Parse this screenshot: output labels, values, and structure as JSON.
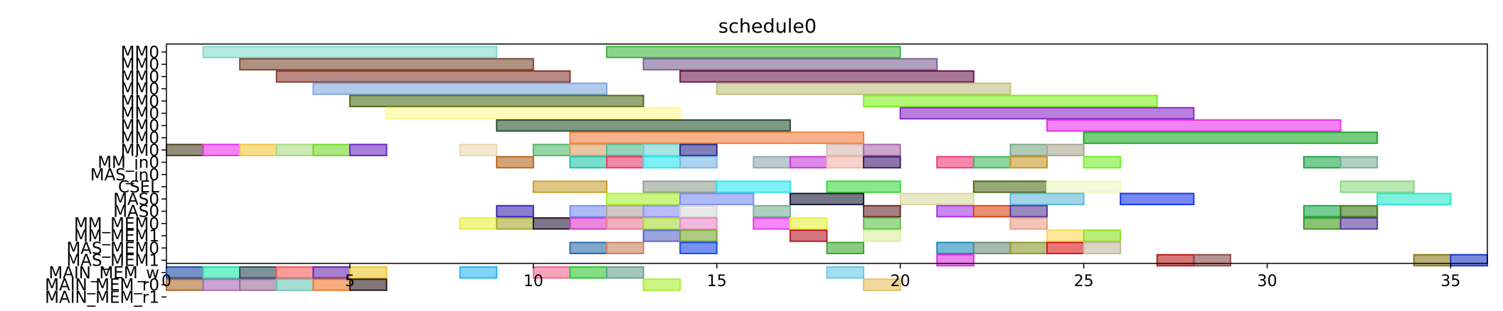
{
  "chart_data": {
    "type": "gantt",
    "title": "schedule0",
    "xlim": [
      0,
      36
    ],
    "x_ticks": [
      0,
      5,
      10,
      15,
      20,
      25,
      30,
      35
    ],
    "grid": false,
    "lanes": [
      "MM0",
      "MM0",
      "MM0",
      "MM0",
      "MM0",
      "MM0",
      "MM0",
      "MM0",
      "MM0",
      "MM_in0",
      "MAS_in0",
      "CSEL",
      "MAS0",
      "MAS0",
      "MM_MEM0",
      "MM_MEM1",
      "MAS_MEM0",
      "MAS_MEM1",
      "MAIN_MEM_w",
      "MAIN_MEM_r0",
      "MAIN_MEM_r1"
    ],
    "tasks": [
      {
        "lane": 0,
        "start": 1,
        "end": 9,
        "color": "#7fdccc"
      },
      {
        "lane": 0,
        "start": 12,
        "end": 20,
        "color": "#3fb83f"
      },
      {
        "lane": 1,
        "start": 2,
        "end": 10,
        "color": "#7a4a30"
      },
      {
        "lane": 1,
        "start": 13,
        "end": 21,
        "color": "#7d6294"
      },
      {
        "lane": 2,
        "start": 3,
        "end": 11,
        "color": "#8a3a30"
      },
      {
        "lane": 2,
        "start": 14,
        "end": 22,
        "color": "#6d1a50"
      },
      {
        "lane": 3,
        "start": 4,
        "end": 12,
        "color": "#7fa8e0"
      },
      {
        "lane": 3,
        "start": 15,
        "end": 23,
        "color": "#c0c080"
      },
      {
        "lane": 4,
        "start": 5,
        "end": 13,
        "color": "#4e6e1a"
      },
      {
        "lane": 4,
        "start": 19,
        "end": 27,
        "color": "#7ef020"
      },
      {
        "lane": 5,
        "start": 6,
        "end": 14,
        "color": "#fff690"
      },
      {
        "lane": 5,
        "start": 20,
        "end": 28,
        "color": "#8a2ac8"
      },
      {
        "lane": 6,
        "start": 9,
        "end": 17,
        "color": "#2a5230"
      },
      {
        "lane": 6,
        "start": 24,
        "end": 32,
        "color": "#ea30ea"
      },
      {
        "lane": 7,
        "start": 11,
        "end": 19,
        "color": "#f47e3e"
      },
      {
        "lane": 7,
        "start": 25,
        "end": 33,
        "color": "#1ea82a"
      },
      {
        "lane": 8,
        "start": 0,
        "end": 1,
        "color": "#4e4022"
      },
      {
        "lane": 8,
        "start": 1,
        "end": 2,
        "color": "#ea30ea"
      },
      {
        "lane": 8,
        "start": 2,
        "end": 3,
        "color": "#f4c83e"
      },
      {
        "lane": 8,
        "start": 3,
        "end": 4,
        "color": "#a8da80"
      },
      {
        "lane": 8,
        "start": 4,
        "end": 5,
        "color": "#72d82a"
      },
      {
        "lane": 8,
        "start": 5,
        "end": 6,
        "color": "#6a2ac0"
      },
      {
        "lane": 8,
        "start": 8,
        "end": 9,
        "color": "#ecd8b0"
      },
      {
        "lane": 8,
        "start": 10,
        "end": 11,
        "color": "#50b868"
      },
      {
        "lane": 8,
        "start": 11,
        "end": 12,
        "color": "#d8a068"
      },
      {
        "lane": 8,
        "start": 12,
        "end": 13,
        "color": "#54b890"
      },
      {
        "lane": 8,
        "start": 13,
        "end": 14,
        "color": "#6ad4d0"
      },
      {
        "lane": 8,
        "start": 14,
        "end": 15,
        "color": "#2a2a8a"
      },
      {
        "lane": 8,
        "start": 18,
        "end": 19,
        "color": "#d8b8b0"
      },
      {
        "lane": 8,
        "start": 19,
        "end": 20,
        "color": "#aa68aa"
      },
      {
        "lane": 8,
        "start": 23,
        "end": 24,
        "color": "#7aa888"
      },
      {
        "lane": 8,
        "start": 24,
        "end": 25,
        "color": "#a8a890"
      },
      {
        "lane": 9,
        "start": 9,
        "end": 10,
        "color": "#b86820"
      },
      {
        "lane": 9,
        "start": 11,
        "end": 12,
        "color": "#1ec8a8"
      },
      {
        "lane": 9,
        "start": 12,
        "end": 13,
        "color": "#e83868"
      },
      {
        "lane": 9,
        "start": 13,
        "end": 14,
        "color": "#2ae8f0"
      },
      {
        "lane": 9,
        "start": 14,
        "end": 15,
        "color": "#7ab8e8"
      },
      {
        "lane": 9,
        "start": 16,
        "end": 17,
        "color": "#90a8b0"
      },
      {
        "lane": 9,
        "start": 17,
        "end": 18,
        "color": "#c838d8"
      },
      {
        "lane": 9,
        "start": 18,
        "end": 19,
        "color": "#f0b8a8"
      },
      {
        "lane": 9,
        "start": 19,
        "end": 20,
        "color": "#3a1a6a"
      },
      {
        "lane": 9,
        "start": 21,
        "end": 22,
        "color": "#f03878"
      },
      {
        "lane": 9,
        "start": 22,
        "end": 23,
        "color": "#40b860"
      },
      {
        "lane": 9,
        "start": 23,
        "end": 24,
        "color": "#c89828"
      },
      {
        "lane": 9,
        "start": 25,
        "end": 26,
        "color": "#72f02a"
      },
      {
        "lane": 9,
        "start": 31,
        "end": 32,
        "color": "#1ea84a"
      },
      {
        "lane": 9,
        "start": 32,
        "end": 33,
        "color": "#78b098"
      },
      {
        "lane": 11,
        "start": 10,
        "end": 12,
        "color": "#c8a030"
      },
      {
        "lane": 11,
        "start": 13,
        "end": 15,
        "color": "#90a090"
      },
      {
        "lane": 11,
        "start": 15,
        "end": 17,
        "color": "#2ae8f0"
      },
      {
        "lane": 11,
        "start": 18,
        "end": 20,
        "color": "#3ad83a"
      },
      {
        "lane": 11,
        "start": 22,
        "end": 24,
        "color": "#4e6e1a"
      },
      {
        "lane": 11,
        "start": 24,
        "end": 26,
        "color": "#ecf8c0"
      },
      {
        "lane": 11,
        "start": 32,
        "end": 34,
        "color": "#8ad880"
      },
      {
        "lane": 12,
        "start": 12,
        "end": 14,
        "color": "#a8f030"
      },
      {
        "lane": 12,
        "start": 14,
        "end": 16,
        "color": "#7a8ef0"
      },
      {
        "lane": 12,
        "start": 17,
        "end": 19,
        "color": "#1a1a3a"
      },
      {
        "lane": 12,
        "start": 20,
        "end": 22,
        "color": "#d8d8a0"
      },
      {
        "lane": 12,
        "start": 23,
        "end": 25,
        "color": "#60b8d8"
      },
      {
        "lane": 12,
        "start": 26,
        "end": 28,
        "color": "#1a38e8"
      },
      {
        "lane": 12,
        "start": 33,
        "end": 35,
        "color": "#2ae8c8"
      },
      {
        "lane": 13,
        "start": 9,
        "end": 10,
        "color": "#3a2ab0"
      },
      {
        "lane": 13,
        "start": 11,
        "end": 12,
        "color": "#7a8ef0"
      },
      {
        "lane": 13,
        "start": 12,
        "end": 13,
        "color": "#b8a0a0"
      },
      {
        "lane": 13,
        "start": 13,
        "end": 14,
        "color": "#8a90f0"
      },
      {
        "lane": 13,
        "start": 14,
        "end": 15,
        "color": "#d8d8d8"
      },
      {
        "lane": 13,
        "start": 16,
        "end": 17,
        "color": "#78b098"
      },
      {
        "lane": 13,
        "start": 19,
        "end": 20,
        "color": "#6a2a2a"
      },
      {
        "lane": 13,
        "start": 21,
        "end": 22,
        "color": "#a838e8"
      },
      {
        "lane": 13,
        "start": 22,
        "end": 23,
        "color": "#d84818"
      },
      {
        "lane": 13,
        "start": 23,
        "end": 24,
        "color": "#5a3a9a"
      },
      {
        "lane": 13,
        "start": 31,
        "end": 32,
        "color": "#1ea84a"
      },
      {
        "lane": 13,
        "start": 32,
        "end": 33,
        "color": "#3a7a1a"
      },
      {
        "lane": 14,
        "start": 8,
        "end": 9,
        "color": "#e8f040"
      },
      {
        "lane": 14,
        "start": 9,
        "end": 10,
        "color": "#a8a830"
      },
      {
        "lane": 14,
        "start": 10,
        "end": 11,
        "color": "#2a1a3a"
      },
      {
        "lane": 14,
        "start": 11,
        "end": 12,
        "color": "#d838c8"
      },
      {
        "lane": 14,
        "start": 12,
        "end": 13,
        "color": "#e87890"
      },
      {
        "lane": 14,
        "start": 13,
        "end": 14,
        "color": "#a8d838"
      },
      {
        "lane": 14,
        "start": 14,
        "end": 15,
        "color": "#e888c8"
      },
      {
        "lane": 14,
        "start": 16,
        "end": 17,
        "color": "#e838f0"
      },
      {
        "lane": 14,
        "start": 17,
        "end": 18,
        "color": "#e8f040"
      },
      {
        "lane": 14,
        "start": 19,
        "end": 20,
        "color": "#60c048"
      },
      {
        "lane": 14,
        "start": 23,
        "end": 24,
        "color": "#e8a088"
      },
      {
        "lane": 14,
        "start": 31,
        "end": 32,
        "color": "#3a9a1a"
      },
      {
        "lane": 14,
        "start": 32,
        "end": 33,
        "color": "#5a3a9a"
      },
      {
        "lane": 15,
        "start": 13,
        "end": 14,
        "color": "#5a68c8"
      },
      {
        "lane": 15,
        "start": 14,
        "end": 15,
        "color": "#78a830"
      },
      {
        "lane": 15,
        "start": 17,
        "end": 18,
        "color": "#b81a2a"
      },
      {
        "lane": 15,
        "start": 19,
        "end": 20,
        "color": "#d8f0a0"
      },
      {
        "lane": 15,
        "start": 24,
        "end": 25,
        "color": "#f8d858"
      },
      {
        "lane": 15,
        "start": 25,
        "end": 26,
        "color": "#8ae020"
      },
      {
        "lane": 16,
        "start": 11,
        "end": 12,
        "color": "#2a6aa8"
      },
      {
        "lane": 16,
        "start": 12,
        "end": 13,
        "color": "#c88060"
      },
      {
        "lane": 16,
        "start": 14,
        "end": 15,
        "color": "#1a4ae8"
      },
      {
        "lane": 16,
        "start": 18,
        "end": 19,
        "color": "#40a830"
      },
      {
        "lane": 16,
        "start": 21,
        "end": 22,
        "color": "#1a8ab8"
      },
      {
        "lane": 16,
        "start": 22,
        "end": 23,
        "color": "#6a8a7a"
      },
      {
        "lane": 16,
        "start": 23,
        "end": 24,
        "color": "#8a9a2a"
      },
      {
        "lane": 16,
        "start": 24,
        "end": 25,
        "color": "#d81818"
      },
      {
        "lane": 16,
        "start": 25,
        "end": 26,
        "color": "#c8b8a0"
      },
      {
        "lane": 17,
        "start": 21,
        "end": 22,
        "color": "#e030e0"
      },
      {
        "lane": 17,
        "start": 27,
        "end": 28,
        "color": "#b81a1a"
      },
      {
        "lane": 17,
        "start": 28,
        "end": 29,
        "color": "#8a4a4a"
      },
      {
        "lane": 17,
        "start": 34,
        "end": 35,
        "color": "#8a7a18"
      },
      {
        "lane": 17,
        "start": 35,
        "end": 36,
        "color": "#1a38c8"
      },
      {
        "lane": 18,
        "start": 0,
        "end": 1,
        "color": "#1a4aa8"
      },
      {
        "lane": 18,
        "start": 1,
        "end": 2,
        "color": "#1ae8a8"
      },
      {
        "lane": 18,
        "start": 2,
        "end": 3,
        "color": "#2a4a5a"
      },
      {
        "lane": 18,
        "start": 3,
        "end": 4,
        "color": "#f85a5a"
      },
      {
        "lane": 18,
        "start": 4,
        "end": 5,
        "color": "#6a2ab0"
      },
      {
        "lane": 18,
        "start": 5,
        "end": 6,
        "color": "#f0c828"
      },
      {
        "lane": 18,
        "start": 8,
        "end": 9,
        "color": "#2ab8f0"
      },
      {
        "lane": 18,
        "start": 10,
        "end": 11,
        "color": "#f06890"
      },
      {
        "lane": 18,
        "start": 11,
        "end": 12,
        "color": "#30c830"
      },
      {
        "lane": 18,
        "start": 12,
        "end": 13,
        "color": "#68a090"
      },
      {
        "lane": 18,
        "start": 18,
        "end": 19,
        "color": "#68c8e8"
      },
      {
        "lane": 19,
        "start": 0,
        "end": 1,
        "color": "#a86a2a"
      },
      {
        "lane": 19,
        "start": 1,
        "end": 2,
        "color": "#a868b8"
      },
      {
        "lane": 19,
        "start": 2,
        "end": 3,
        "color": "#9a6a9a"
      },
      {
        "lane": 19,
        "start": 3,
        "end": 4,
        "color": "#6ac8b8"
      },
      {
        "lane": 19,
        "start": 4,
        "end": 5,
        "color": "#f07828"
      },
      {
        "lane": 19,
        "start": 5,
        "end": 6,
        "color": "#2a1a1a"
      },
      {
        "lane": 19,
        "start": 13,
        "end": 14,
        "color": "#a8f030"
      },
      {
        "lane": 19,
        "start": 19,
        "end": 20,
        "color": "#e8c060"
      }
    ]
  }
}
